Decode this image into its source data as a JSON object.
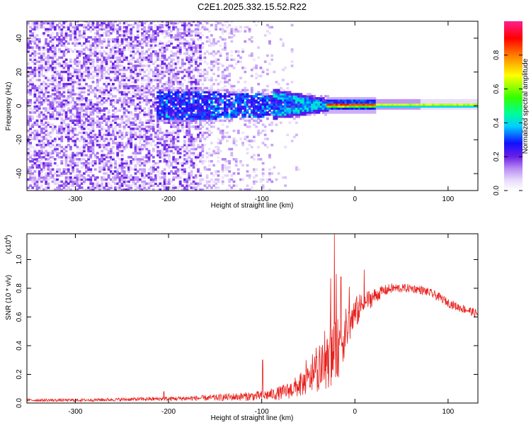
{
  "title": "C2E1.2025.332.15.52.R22",
  "chart_data": [
    {
      "type": "heatmap",
      "name": "spectrogram",
      "xlabel": "Height of straight line (km)",
      "ylabel": "Frequency (Hz)",
      "xlim": [
        -352,
        132
      ],
      "ylim": [
        -50,
        50
      ],
      "xticks": [
        -300,
        -200,
        -100,
        0,
        100
      ],
      "yticks": [
        -40,
        -20,
        0,
        20,
        40
      ],
      "colorbar": {
        "label": "Normalized spectral amplitude",
        "range": [
          0,
          1
        ],
        "ticks": [
          0.0,
          0.2,
          0.4,
          0.6,
          0.8
        ],
        "tick_labels": [
          "0.0",
          "0.2",
          "0.4",
          "0.6",
          "0.8"
        ]
      },
      "features": {
        "noise_region_x": [
          -352,
          -90
        ],
        "dense_band_start_x": -215,
        "tone_split_x": [
          -80,
          -35
        ],
        "tone_merge_x": -30,
        "steady_tone_freq": 0
      }
    },
    {
      "type": "line",
      "name": "snr",
      "xlabel": "Height of straight line (km)",
      "ylabel": "SNR (10 * v/v)",
      "scale_label": "(x10",
      "scale_exponent": "4",
      "scale_close": ")",
      "xlim": [
        -352,
        132
      ],
      "ylim": [
        0,
        1.18
      ],
      "xticks": [
        -300,
        -200,
        -100,
        0,
        100
      ],
      "yticks": [
        0.0,
        0.2,
        0.4,
        0.6,
        0.8,
        1.0
      ],
      "ytick_labels": [
        "0.0",
        "0.2",
        "0.4",
        "0.6",
        "0.8",
        "1.0"
      ],
      "series": [
        {
          "name": "SNR",
          "color": "#e8201c",
          "envelope": {
            "x": [
              -352,
              -300,
              -250,
              -200,
              -160,
              -140,
              -120,
              -100,
              -90,
              -80,
              -70,
              -60,
              -50,
              -45,
              -40,
              -35,
              -30,
              -25,
              -20,
              -15,
              -10,
              -5,
              0,
              5,
              10,
              20,
              30,
              40,
              50,
              60,
              70,
              80,
              90,
              100,
              110,
              120,
              132
            ],
            "base": [
              0.02,
              0.02,
              0.025,
              0.03,
              0.035,
              0.04,
              0.045,
              0.05,
              0.06,
              0.07,
              0.09,
              0.12,
              0.16,
              0.19,
              0.22,
              0.25,
              0.28,
              0.32,
              0.36,
              0.42,
              0.5,
              0.56,
              0.62,
              0.66,
              0.7,
              0.74,
              0.78,
              0.8,
              0.8,
              0.8,
              0.79,
              0.77,
              0.74,
              0.7,
              0.67,
              0.65,
              0.62
            ],
            "jitter": [
              0.01,
              0.01,
              0.012,
              0.015,
              0.02,
              0.025,
              0.03,
              0.035,
              0.04,
              0.05,
              0.06,
              0.08,
              0.1,
              0.12,
              0.14,
              0.16,
              0.18,
              0.2,
              0.22,
              0.2,
              0.16,
              0.13,
              0.12,
              0.1,
              0.08,
              0.06,
              0.04,
              0.035,
              0.03,
              0.03,
              0.03,
              0.03,
              0.03,
              0.03,
              0.03,
              0.03,
              0.03
            ]
          },
          "spikes": [
            {
              "x": -99,
              "y": 0.3
            },
            {
              "x": -26,
              "y": 0.87
            },
            {
              "x": -22,
              "y": 1.18
            },
            {
              "x": -20,
              "y": 0.9
            },
            {
              "x": -15,
              "y": 0.88
            },
            {
              "x": 10,
              "y": 0.93
            },
            {
              "x": -205,
              "y": 0.08
            }
          ]
        }
      ]
    }
  ]
}
